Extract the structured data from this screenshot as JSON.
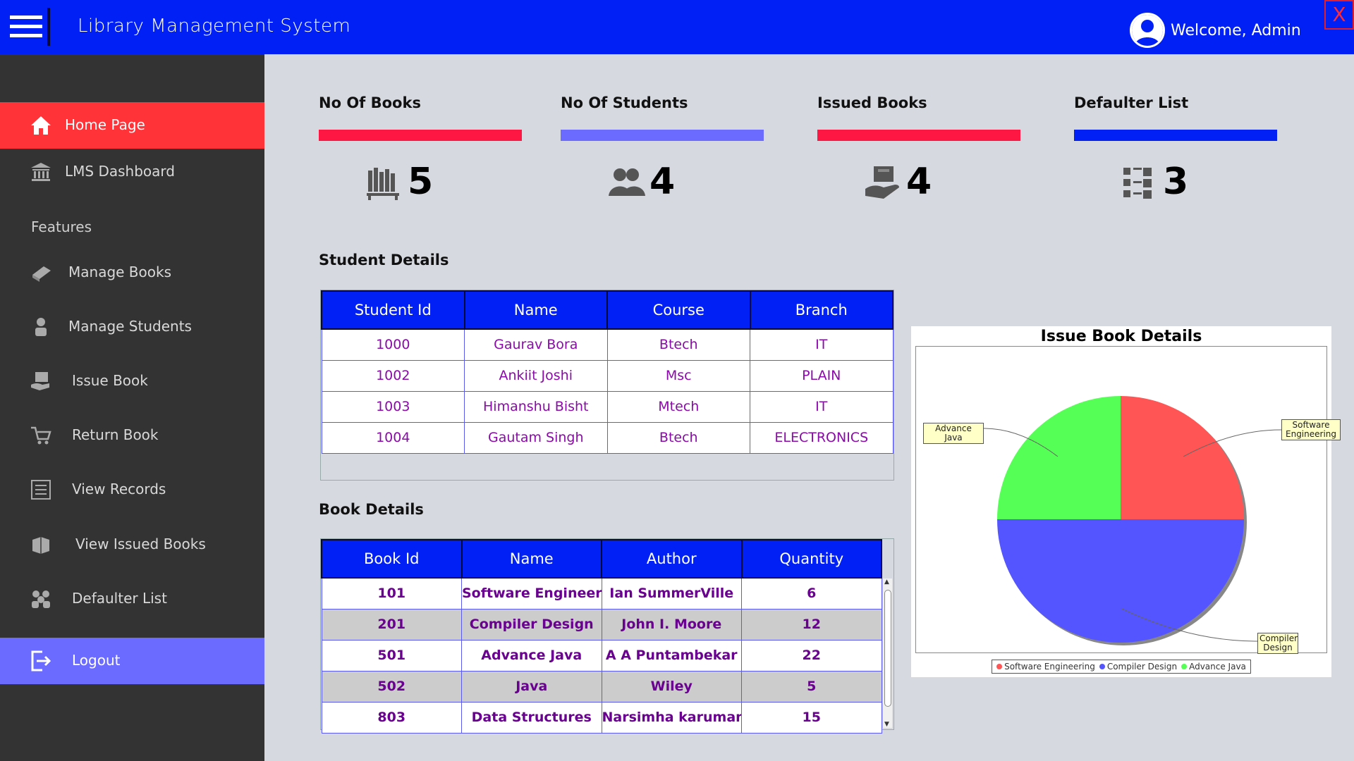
{
  "header": {
    "title": "Library Management System",
    "welcome": "Welcome, Admin",
    "close_label": "X"
  },
  "sidebar": {
    "features_label": "Features",
    "items": [
      {
        "label": "Home Page",
        "icon": "home-icon"
      },
      {
        "label": "LMS Dashboard",
        "icon": "bank-icon"
      },
      {
        "label": "Manage Books",
        "icon": "book-icon"
      },
      {
        "label": "Manage Students",
        "icon": "student-icon"
      },
      {
        "label": "Issue Book",
        "icon": "issue-book-icon"
      },
      {
        "label": "Return Book",
        "icon": "cart-return-icon"
      },
      {
        "label": "View Records",
        "icon": "list-icon"
      },
      {
        "label": "View Issued Books",
        "icon": "books-stack-icon"
      },
      {
        "label": "Defaulter List",
        "icon": "group-icon"
      },
      {
        "label": "Logout",
        "icon": "logout-icon"
      }
    ]
  },
  "stats": [
    {
      "title": "No Of Books",
      "value": "5",
      "color": "#ff1744",
      "icon": "bookshelf-icon"
    },
    {
      "title": "No Of Students",
      "value": "4",
      "color": "#6b6bff",
      "icon": "students-icon"
    },
    {
      "title": "Issued Books",
      "value": "4",
      "color": "#ff1744",
      "icon": "book-in-hand-icon"
    },
    {
      "title": "Defaulter List",
      "value": "3",
      "color": "#0020f5",
      "icon": "checklist-icon"
    }
  ],
  "student_section": {
    "title": "Student Details",
    "columns": [
      "Student Id",
      "Name",
      "Course",
      "Branch"
    ],
    "rows": [
      [
        "1000",
        "Gaurav Bora",
        "Btech",
        "IT"
      ],
      [
        "1002",
        "Ankiit Joshi",
        "Msc",
        "PLAIN"
      ],
      [
        "1003",
        "Himanshu Bisht",
        "Mtech",
        "IT"
      ],
      [
        "1004",
        "Gautam Singh",
        "Btech",
        "ELECTRONICS"
      ]
    ]
  },
  "book_section": {
    "title": "Book Details",
    "columns": [
      "Book Id",
      "Name",
      "Author",
      "Quantity"
    ],
    "rows": [
      [
        "101",
        "Software Engineering",
        "Ian SummerVille",
        "6"
      ],
      [
        "201",
        "Compiler Design",
        "John I. Moore",
        "12"
      ],
      [
        "501",
        "Advance Java",
        "A A Puntambekar",
        "22"
      ],
      [
        "502",
        "Java",
        "Wiley",
        "5"
      ],
      [
        "803",
        "Data Structures",
        "Narsimha karumanc...",
        "15"
      ]
    ]
  },
  "chart_data": {
    "type": "pie",
    "title": "Issue Book Details",
    "series": [
      {
        "name": "Software Engineering",
        "value": 1,
        "color": "#ff5555"
      },
      {
        "name": "Compiler Design",
        "value": 2,
        "color": "#5555ff"
      },
      {
        "name": "Advance Java",
        "value": 1,
        "color": "#55ff55"
      }
    ],
    "callouts": [
      {
        "lines": [
          "Software",
          "Engineering"
        ]
      },
      {
        "lines": [
          "Compiler",
          "Design"
        ]
      },
      {
        "lines": [
          "Advance Java"
        ]
      }
    ],
    "legend_placement": "bottom"
  }
}
